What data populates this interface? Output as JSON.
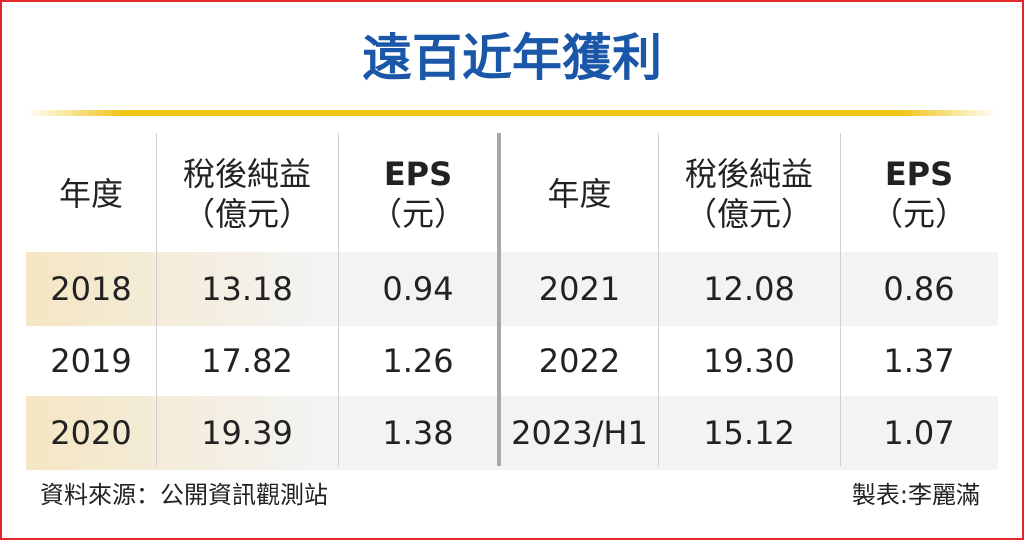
{
  "chart_data": {
    "type": "table",
    "title": "遠百近年獲利",
    "columns": [
      {
        "line1": "年度",
        "line2": ""
      },
      {
        "line1": "稅後純益",
        "line2": "（億元）"
      },
      {
        "line1": "EPS",
        "line2": "（元）"
      }
    ],
    "rows": [
      {
        "left": [
          "2018",
          "13.18",
          "0.94"
        ],
        "right": [
          "2021",
          "12.08",
          "0.86"
        ]
      },
      {
        "left": [
          "2019",
          "17.82",
          "1.26"
        ],
        "right": [
          "2022",
          "19.30",
          "1.37"
        ]
      },
      {
        "left": [
          "2020",
          "19.39",
          "1.38"
        ],
        "right": [
          "2023/H1",
          "15.12",
          "1.07"
        ]
      }
    ],
    "source": "資料來源：公開資訊觀測站",
    "credit": "製表:李麗滿"
  },
  "colors": {
    "title": "#1b57a8",
    "frame": "#e2262a",
    "title_rule": "#f0c414",
    "row_band_tint": "#f5e6c2",
    "row_band": "#f3f3f3",
    "divider": "#a8a8a8"
  }
}
